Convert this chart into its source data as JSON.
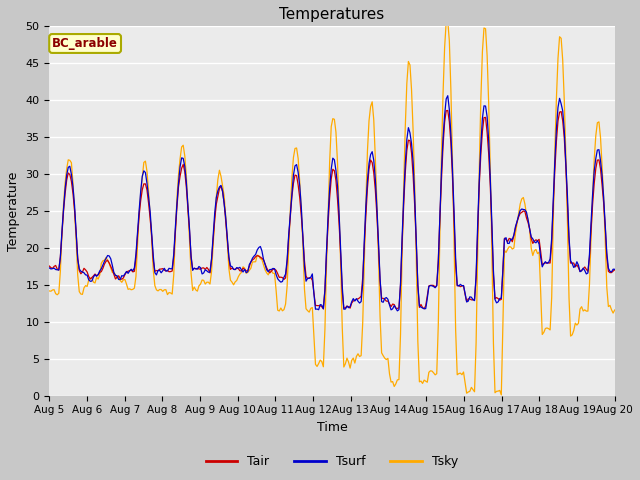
{
  "title": "Temperatures",
  "xlabel": "Time",
  "ylabel": "Temperature",
  "ylim": [
    0,
    50
  ],
  "annotation": "BC_arable",
  "legend_labels": [
    "Tair",
    "Tsurf",
    "Tsky"
  ],
  "line_colors": [
    "#cc0000",
    "#0000cc",
    "#ffaa00"
  ],
  "plot_bg_color": "#ebebeb",
  "fig_bg_color": "#c8c8c8",
  "grid_color": "#ffffff",
  "xtick_labels": [
    "Aug 5",
    "Aug 6",
    "Aug 7",
    "Aug 8",
    "Aug 9",
    "Aug 10",
    "Aug 11",
    "Aug 12",
    "Aug 13",
    "Aug 14",
    "Aug 15",
    "Aug 16",
    "Aug 17",
    "Aug 18",
    "Aug 19",
    "Aug 20"
  ],
  "ytick_values": [
    0,
    5,
    10,
    15,
    20,
    25,
    30,
    35,
    40,
    45,
    50
  ],
  "n_days": 15,
  "hours_per_day": 24,
  "tair_peaks": [
    30,
    18,
    29,
    31,
    28,
    19,
    30,
    31,
    32,
    35,
    39,
    38,
    25,
    39,
    32
  ],
  "tair_mins": [
    17,
    16,
    17,
    17,
    17,
    17,
    16,
    12,
    13,
    12,
    15,
    13,
    21,
    18,
    17
  ],
  "tsky_extra_amp": [
    1.4,
    1.3,
    1.4,
    1.4,
    1.3,
    1.5,
    1.6,
    1.8,
    1.8,
    1.9,
    2.0,
    2.0,
    1.7,
    1.9,
    1.7
  ]
}
